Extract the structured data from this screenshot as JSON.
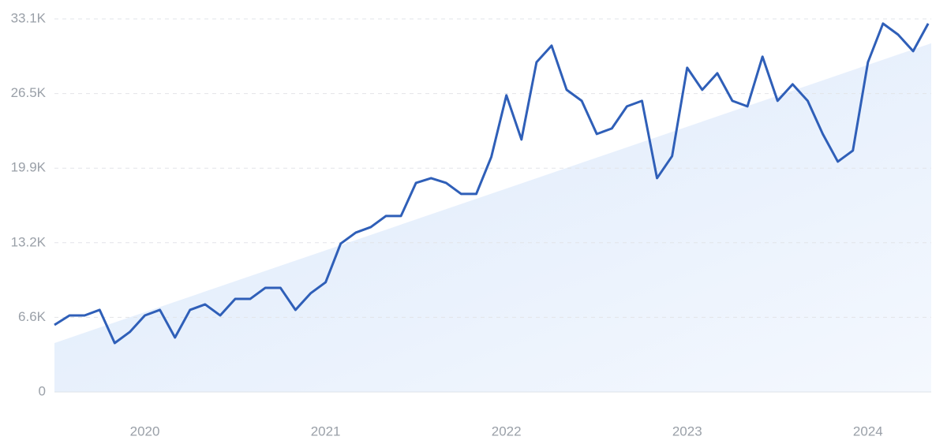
{
  "chart_data": {
    "type": "line",
    "x": [
      2019.5,
      2019.5833,
      2019.6667,
      2019.75,
      2019.8333,
      2019.9167,
      2020,
      2020.0833,
      2020.1667,
      2020.25,
      2020.3333,
      2020.4167,
      2020.5,
      2020.5833,
      2020.6667,
      2020.75,
      2020.8333,
      2020.9167,
      2021,
      2021.0833,
      2021.1667,
      2021.25,
      2021.3333,
      2021.4167,
      2021.5,
      2021.5833,
      2021.6667,
      2021.75,
      2021.8333,
      2021.9167,
      2022,
      2022.0833,
      2022.1667,
      2022.25,
      2022.3333,
      2022.4167,
      2022.5,
      2022.5833,
      2022.6667,
      2022.75,
      2022.8333,
      2022.9167,
      2023,
      2023.0833,
      2023.1667,
      2023.25,
      2023.3333,
      2023.4167,
      2023.5,
      2023.5833,
      2023.6667,
      2023.75,
      2023.8333,
      2023.9167,
      2024,
      2024.0833,
      2024.1667,
      2024.25,
      2024.3333
    ],
    "series": [
      {
        "color": "#2f5fb8",
        "values": [
          5950,
          6790,
          6790,
          7280,
          4340,
          5320,
          6790,
          7280,
          4830,
          7280,
          7770,
          6790,
          8260,
          8260,
          9240,
          9240,
          7280,
          8750,
          9730,
          13160,
          14140,
          14630,
          15610,
          15610,
          18550,
          18970,
          18550,
          17570,
          17570,
          20860,
          26320,
          22400,
          29260,
          30730,
          26810,
          25830,
          22890,
          23380,
          25340,
          25830,
          18970,
          20930,
          28770,
          26810,
          28280,
          25830,
          25340,
          29750,
          25830,
          27300,
          25830,
          22890,
          20440,
          21420,
          29260,
          32690,
          31710,
          30240,
          32690
        ]
      }
    ],
    "trend": {
      "color": "#dce9fb",
      "x": [
        2019.5,
        2024.35
      ],
      "values": [
        4340,
        30940
      ]
    },
    "xlim": [
      2019.5,
      2024.35
    ],
    "xticks": [
      2020,
      2021,
      2022,
      2023,
      2024
    ],
    "ylim": [
      0,
      33100
    ],
    "yticks": [
      0,
      {
        "value": 6620,
        "label": "6.6K"
      },
      {
        "value": 13240,
        "label": "13.2K"
      },
      {
        "value": 19860,
        "label": "19.9K"
      },
      {
        "value": 26480,
        "label": "26.5K"
      },
      {
        "value": 33100,
        "label": "33.1K"
      }
    ],
    "grid": true
  }
}
